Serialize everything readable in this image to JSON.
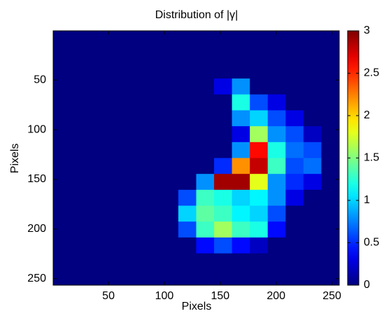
{
  "chart_data": {
    "type": "heatmap",
    "title": "Distribution of |γ|",
    "x_label": "Pixels",
    "y_label": "Pixels",
    "colormap": "jet",
    "x": [
      8.5,
      24.5,
      40.5,
      56.5,
      72.5,
      88.5,
      104.5,
      120.5,
      136.5,
      152.5,
      168.5,
      184.5,
      200.5,
      216.5,
      232.5,
      248.5
    ],
    "y": [
      8.5,
      24.5,
      40.5,
      56.5,
      72.5,
      88.5,
      104.5,
      120.5,
      136.5,
      152.5,
      168.5,
      184.5,
      200.5,
      216.5,
      232.5,
      248.5
    ],
    "z": [
      [
        0,
        0,
        0,
        0,
        0,
        0,
        0,
        0,
        0,
        0,
        0,
        0,
        0,
        0,
        0,
        0
      ],
      [
        0,
        0,
        0,
        0,
        0,
        0,
        0,
        0,
        0,
        0,
        0,
        0,
        0,
        0,
        0,
        0
      ],
      [
        0,
        0,
        0,
        0,
        0,
        0,
        0,
        0,
        0,
        0,
        0,
        0,
        0,
        0,
        0,
        0
      ],
      [
        0,
        0,
        0,
        0,
        0,
        0,
        0,
        0,
        0,
        0.3,
        0.8,
        0,
        0,
        0,
        0,
        0
      ],
      [
        0,
        0,
        0,
        0,
        0,
        0,
        0,
        0,
        0,
        0,
        1.2,
        0.6,
        0.3,
        0,
        0,
        0
      ],
      [
        0,
        0,
        0,
        0,
        0,
        0,
        0,
        0,
        0,
        0,
        0.8,
        1.0,
        0.6,
        0.3,
        0,
        0
      ],
      [
        0,
        0,
        0,
        0,
        0,
        0,
        0,
        0,
        0,
        0,
        0.3,
        1.6,
        0.8,
        0.6,
        0.2,
        0
      ],
      [
        0,
        0,
        0,
        0,
        0,
        0,
        0,
        0,
        0,
        0,
        0.8,
        2.6,
        1.2,
        0.7,
        0.6,
        0
      ],
      [
        0,
        0,
        0,
        0,
        0,
        0,
        0,
        0,
        0,
        0.5,
        2.2,
        2.8,
        1.3,
        0.6,
        0.7,
        0
      ],
      [
        0,
        0,
        0,
        0,
        0,
        0,
        0,
        0,
        0.8,
        2.9,
        2.9,
        1.8,
        0.8,
        0.5,
        0.3,
        0
      ],
      [
        0,
        0,
        0,
        0,
        0,
        0,
        0,
        0.6,
        1.3,
        1.2,
        1.0,
        1.1,
        0.8,
        0.3,
        0,
        0
      ],
      [
        0,
        0,
        0,
        0,
        0,
        0,
        0,
        1.0,
        1.4,
        1.3,
        1.1,
        1.0,
        0.6,
        0,
        0,
        0
      ],
      [
        0,
        0,
        0,
        0,
        0,
        0,
        0,
        0.6,
        1.3,
        1.6,
        1.3,
        1.2,
        0.4,
        0,
        0,
        0
      ],
      [
        0,
        0,
        0,
        0,
        0,
        0,
        0,
        0,
        0.4,
        0.6,
        0.4,
        0.2,
        0,
        0,
        0,
        0
      ],
      [
        0,
        0,
        0,
        0,
        0,
        0,
        0,
        0,
        0,
        0,
        0,
        0,
        0,
        0,
        0,
        0
      ],
      [
        0,
        0,
        0,
        0,
        0,
        0,
        0,
        0,
        0,
        0,
        0,
        0,
        0,
        0,
        0,
        0
      ]
    ],
    "xlim": [
      0.5,
      256.5
    ],
    "ylim": [
      0.5,
      256.5
    ],
    "y_direction": "reverse",
    "xticks": [
      50,
      100,
      150,
      200,
      250
    ],
    "yticks": [
      50,
      100,
      150,
      200,
      250
    ],
    "colorbar": {
      "lim": [
        0,
        3
      ],
      "ticks": [
        0,
        0.5,
        1,
        1.5,
        2,
        2.5,
        3
      ]
    }
  }
}
